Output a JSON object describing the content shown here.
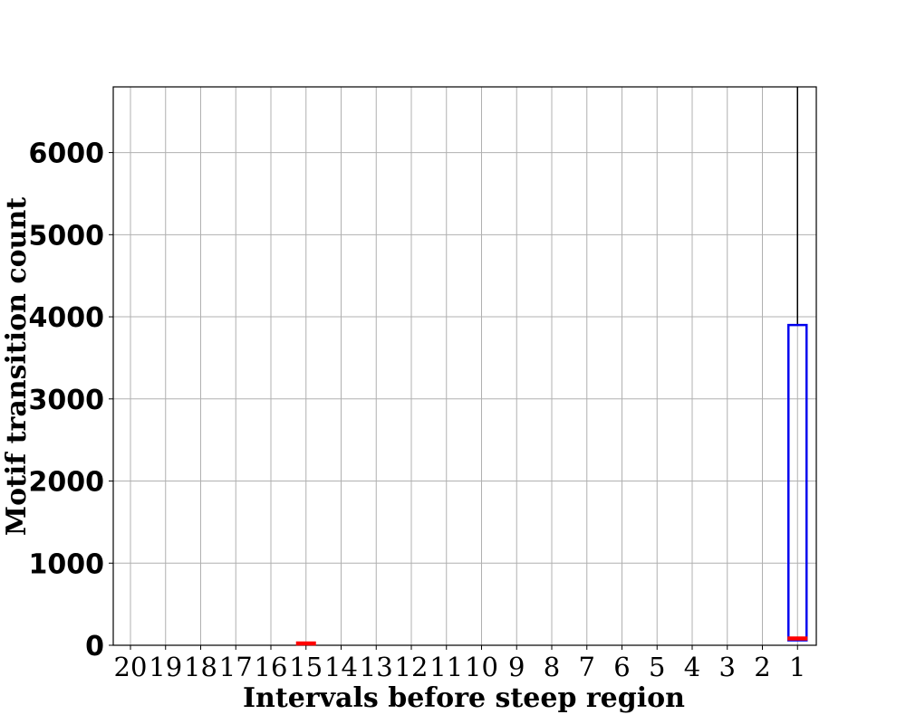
{
  "chart_data": {
    "type": "box",
    "xlabel": "Intervals before steep region",
    "ylabel": "Motif transition count",
    "categories": [
      "20",
      "19",
      "18",
      "17",
      "16",
      "15",
      "14",
      "13",
      "12",
      "11",
      "10",
      "9",
      "8",
      "7",
      "6",
      "5",
      "4",
      "3",
      "2",
      "1"
    ],
    "yticks": [
      "0",
      "1000",
      "2000",
      "3000",
      "4000",
      "5000",
      "6000"
    ],
    "ylim": [
      0,
      6800
    ],
    "grid": true,
    "boxes": [
      {
        "category": "15",
        "q1": 0,
        "median": 0,
        "q3": 0,
        "whisker_low": 0,
        "whisker_high": 0
      },
      {
        "category": "1",
        "q1": 60,
        "median": 60,
        "q3": 3900,
        "whisker_low": 60,
        "whisker_high": 6800
      }
    ],
    "colors": {
      "box": "#0000ee",
      "median": "#ff0000",
      "whisker": "#000000",
      "grid": "#b0b0b0"
    }
  }
}
